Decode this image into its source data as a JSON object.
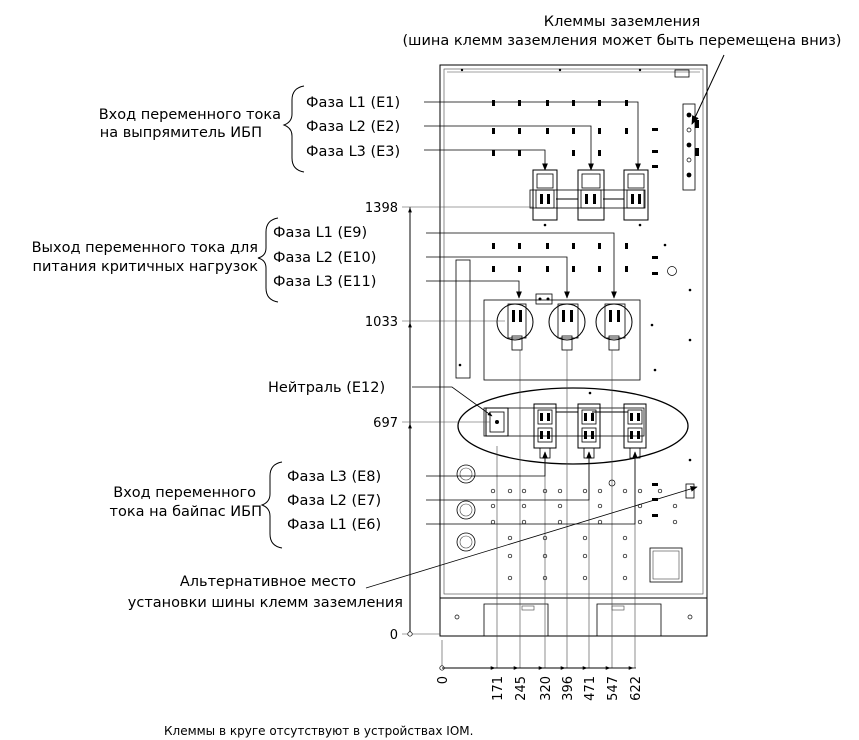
{
  "title_ground": "Клеммы заземления",
  "subtitle_ground": "(шина клемм заземления может быть перемещена вниз)",
  "group_rectifier": {
    "label_line1": "Вход переменного тока",
    "label_line2": "на выпрямитель ИБП",
    "phases": [
      "Фаза L1 (E1)",
      "Фаза L2 (E2)",
      "Фаза L3 (E3)"
    ]
  },
  "group_output": {
    "label_line1": "Выход переменного тока для",
    "label_line2": "питания критичных нагрузок",
    "phases": [
      "Фаза L1 (E9)",
      "Фаза L2 (E10)",
      "Фаза L3 (E11)"
    ]
  },
  "neutral_label": "Нейтраль (E12)",
  "group_bypass": {
    "label_line1": "Вход переменного",
    "label_line2": "тока на байпас ИБП",
    "phases": [
      "Фаза L3 (E8)",
      "Фаза L2 (E7)",
      "Фаза L1 (E6)"
    ]
  },
  "alt_ground": {
    "line1": "Альтернативное место",
    "line2": "установки шины клемм заземления"
  },
  "vertical_dims": [
    "1398",
    "1033",
    "697",
    "0"
  ],
  "horizontal_dims": [
    "0",
    "171",
    "245",
    "320",
    "396",
    "471",
    "547",
    "622"
  ],
  "footnote": "Клеммы в круге отсутствуют в устройствах IOM."
}
